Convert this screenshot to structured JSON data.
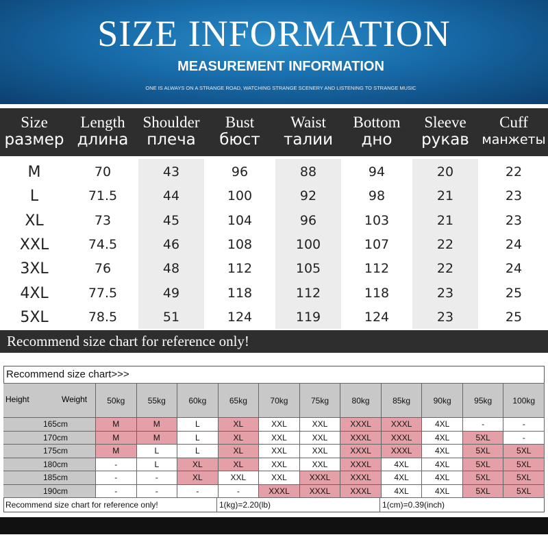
{
  "header": {
    "title": "SIZE INFORMATION",
    "subtitle": "MEASUREMENT INFORMATION",
    "tagline": "ONE IS ALWAYS ON A STRANGE ROAD, WATCHING STRANGE SCENERY AND LISTENING TO STRANGE MUSIC"
  },
  "size_table": {
    "headers": [
      [
        "Size",
        "размер"
      ],
      [
        "Length",
        "длина"
      ],
      [
        "Shoulder",
        "плеча"
      ],
      [
        "Bust",
        "бюст"
      ],
      [
        "Waist",
        "талии"
      ],
      [
        "Bottom",
        "дно"
      ],
      [
        "Sleeve",
        "рукав"
      ],
      [
        "Cuff",
        "манжеты"
      ]
    ],
    "rows": [
      [
        "M",
        70,
        43,
        96,
        88,
        94,
        20,
        22
      ],
      [
        "L",
        71.5,
        44,
        100,
        92,
        98,
        21,
        23
      ],
      [
        "XL",
        73,
        45,
        104,
        96,
        103,
        21,
        23
      ],
      [
        "XXL",
        74.5,
        46,
        108,
        100,
        107,
        22,
        24
      ],
      [
        "3XL",
        76,
        48,
        112,
        105,
        112,
        22,
        24
      ],
      [
        "4XL",
        77.5,
        49,
        118,
        112,
        118,
        23,
        25
      ],
      [
        "5XL",
        78.5,
        51,
        124,
        119,
        124,
        23,
        25
      ]
    ],
    "note": "Recommend size chart for reference only!"
  },
  "recommend_table": {
    "title": "Recommend size chart>>>",
    "corner": {
      "row_label": "Height",
      "column_label": "Weight"
    },
    "weights": [
      "50kg",
      "55kg",
      "60kg",
      "65kg",
      "70kg",
      "75kg",
      "80kg",
      "85kg",
      "90kg",
      "95kg",
      "100kg"
    ],
    "highlight_color": "#e4a0a6",
    "rows": [
      {
        "height": "165cm",
        "cells": [
          "M",
          "M",
          "L",
          "XL",
          "XXL",
          "XXL",
          "XXXL",
          "XXXL",
          "4XL",
          "-",
          "-"
        ],
        "highlight": [
          0,
          1,
          3,
          6,
          7
        ]
      },
      {
        "height": "170cm",
        "cells": [
          "M",
          "M",
          "L",
          "XL",
          "XXL",
          "XXL",
          "XXXL",
          "XXXL",
          "4XL",
          "5XL",
          "-"
        ],
        "highlight": [
          0,
          1,
          3,
          6,
          7,
          9
        ]
      },
      {
        "height": "175cm",
        "cells": [
          "M",
          "L",
          "L",
          "XL",
          "XXL",
          "XXL",
          "XXXL",
          "XXXL",
          "4XL",
          "5XL",
          "5XL"
        ],
        "highlight": [
          0,
          3,
          6,
          7,
          9,
          10
        ]
      },
      {
        "height": "180cm",
        "cells": [
          "-",
          "L",
          "XL",
          "XL",
          "XXL",
          "XXL",
          "XXXL",
          "4XL",
          "4XL",
          "5XL",
          "5XL"
        ],
        "highlight": [
          2,
          3,
          6,
          9,
          10
        ]
      },
      {
        "height": "185cm",
        "cells": [
          "-",
          "-",
          "XL",
          "XXL",
          "XXL",
          "XXXL",
          "XXXL",
          "4XL",
          "4XL",
          "5XL",
          "5XL"
        ],
        "highlight": [
          2,
          5,
          6,
          9,
          10
        ]
      },
      {
        "height": "190cm",
        "cells": [
          "-",
          "-",
          "-",
          "-",
          "XXXL",
          "XXXL",
          "XXXL",
          "4XL",
          "4XL",
          "5XL",
          "5XL"
        ],
        "highlight": [
          4,
          5,
          6,
          9,
          10
        ]
      }
    ],
    "footer": [
      "Recommend size chart for reference only!",
      "1(kg)=2.20(lb)",
      "1(cm)=0.39(inch)"
    ]
  }
}
